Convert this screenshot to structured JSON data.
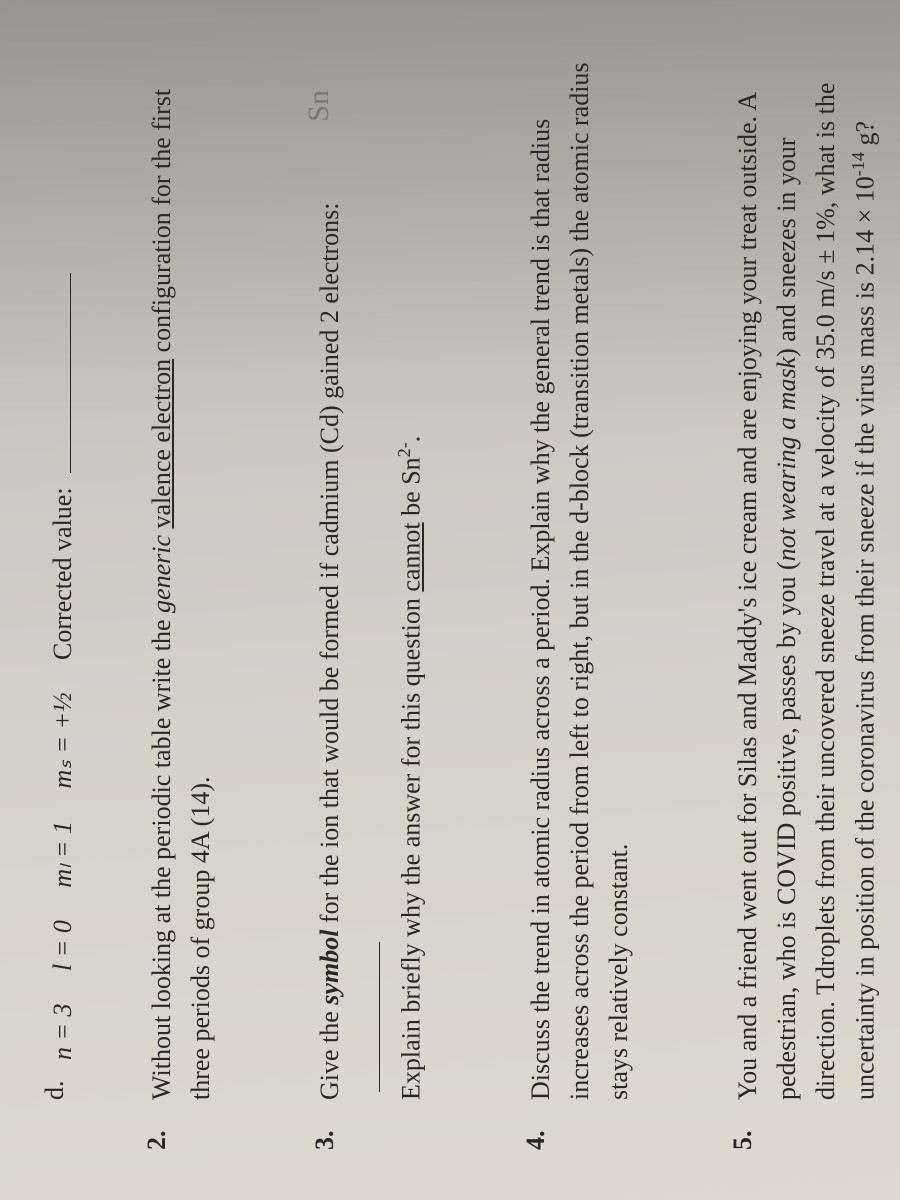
{
  "page": {
    "background_gradient_start": "#b8b5ae",
    "background_gradient_end": "#ddd9d0",
    "text_color": "#2a2826",
    "font_family": "Times New Roman",
    "base_fontsize": 26,
    "rotation_deg": -90
  },
  "questions": {
    "d": {
      "letter": "d.",
      "prefix": "n = 3",
      "l_val": "l = 0",
      "ml_val": "mₗ = 1",
      "ms_val": "mₛ = +½",
      "corrected_label": "Corrected value:"
    },
    "q2": {
      "number": "2.",
      "text_part1": "Without looking at the periodic table write the ",
      "generic": "generic",
      "text_part2": " ",
      "underlined": "valence electron",
      "text_part3": " configuration for the first three periods of group 4A (14)."
    },
    "q3": {
      "number": "3.",
      "text_part1": "Give the ",
      "symbol": "symbol",
      "text_part2": " for the ion that would be formed if cadmium (Cd) gained 2 electrons: ",
      "text_part3": "Explain briefly why the answer for this question ",
      "cannot": "cannot",
      "text_part4": " be Sn",
      "sup": "2-",
      "text_part5": ".",
      "handwritten_answer": "Sn"
    },
    "q4": {
      "number": "4.",
      "text": "Discuss the trend in atomic radius across a period. Explain why the general trend is that radius increases across the period from left to right, but in the d-block (transition metals) the atomic radius stays relatively constant."
    },
    "q5": {
      "number": "5.",
      "text_part1": "You and a friend went out for Silas and Maddy's ice cream and are enjoying your treat outside. A pedestrian, who is COVID positive, passes by you (",
      "italic1": "not wearing a mask",
      "text_part2": ") and sneezes in your direction. T",
      "text_part3": "droplets from their uncovered sneeze travel at a velocity of 35.0 m/s ± 1%, what is the uncertainty in position of the coronavirus from their sneeze if the virus mass is 2.14 × 10",
      "sup": "-14",
      "text_part4": " g?"
    }
  }
}
